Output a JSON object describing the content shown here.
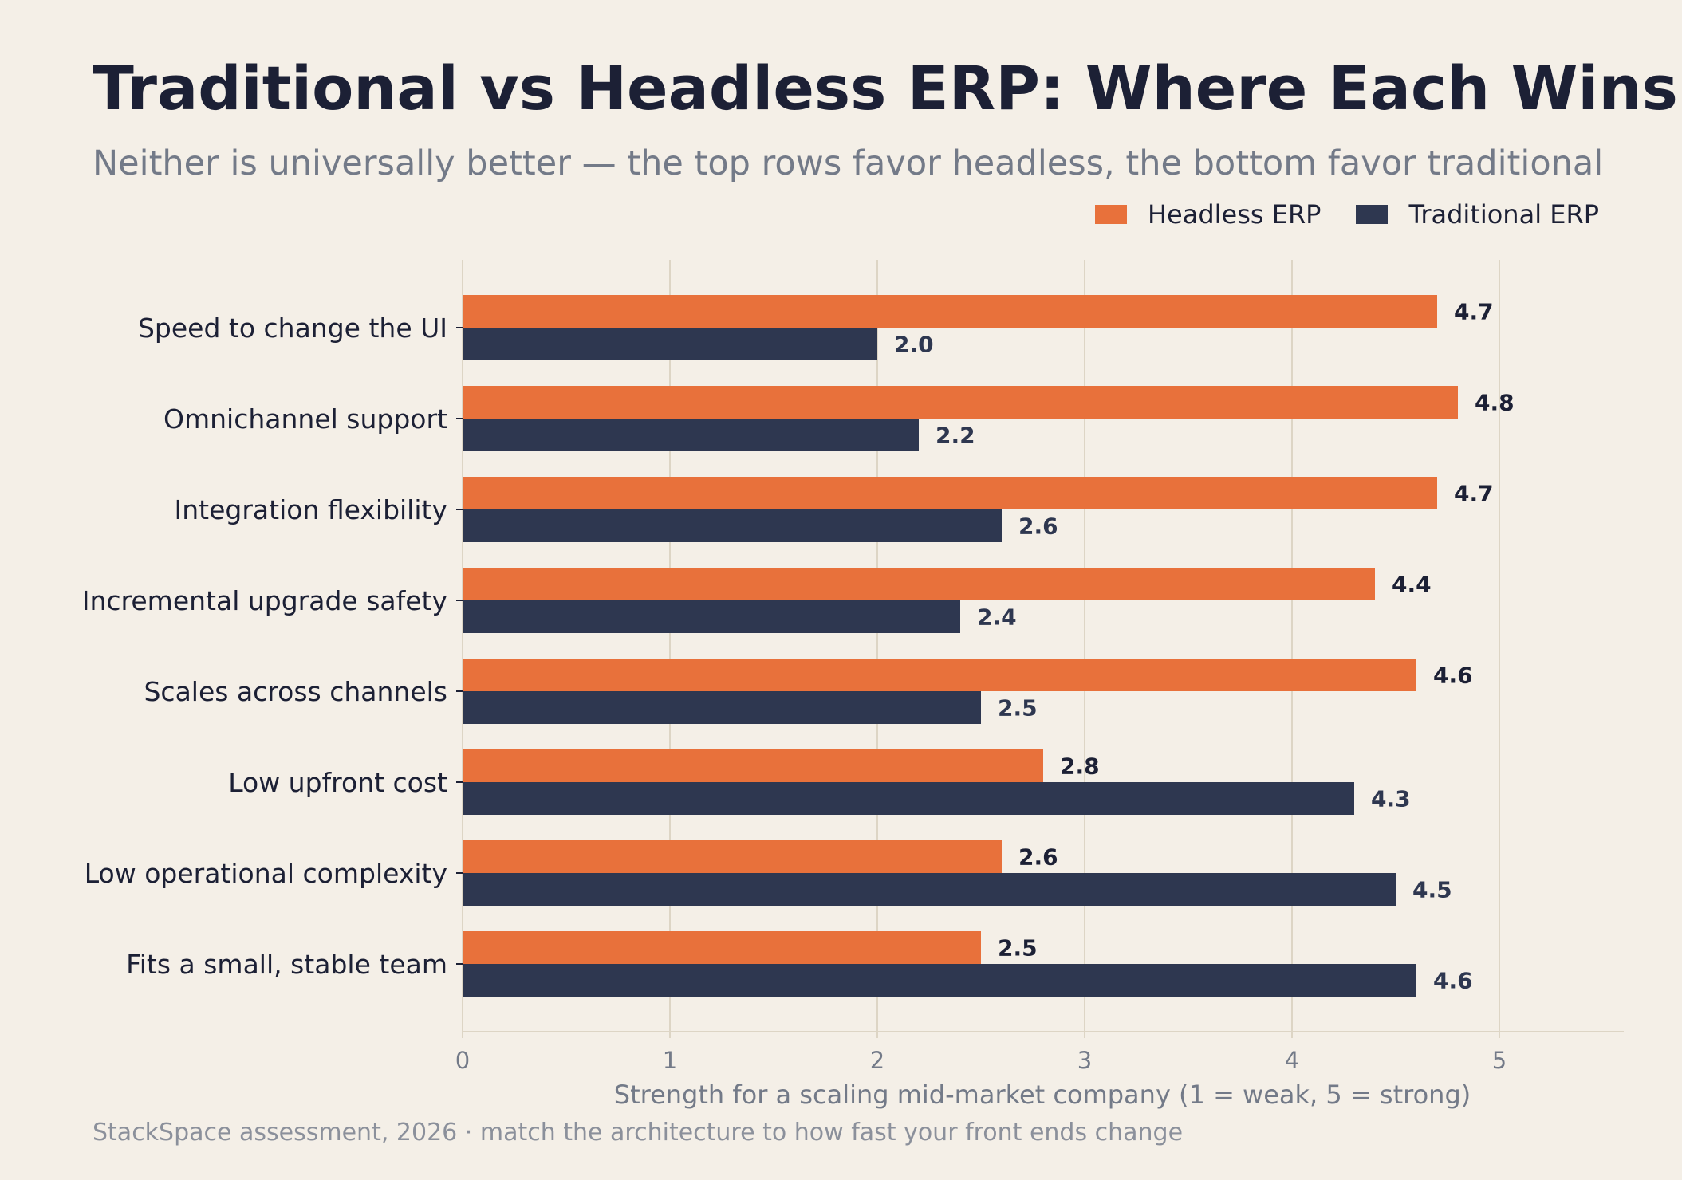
{
  "title": "Traditional vs Headless ERP: Where Each Wins",
  "subtitle": "Neither is universally better — the top rows favor headless, the bottom favor traditional",
  "source": "StackSpace assessment, 2026  ·  match the architecture to how fast your front ends change",
  "colors": {
    "headless": "#e8713b",
    "traditional": "#2e3750",
    "background": "#f4efe7",
    "grid": "#ddd5c5",
    "headless_label": "#1c2035",
    "traditional_label": "#2e3750"
  },
  "chart_data": {
    "type": "bar",
    "orientation": "horizontal",
    "categories": [
      "Speed to change the UI",
      "Omnichannel support",
      "Integration flexibility",
      "Incremental upgrade safety",
      "Scales across channels",
      "Low upfront cost",
      "Low operational complexity",
      "Fits a small, stable team"
    ],
    "series": [
      {
        "name": "Headless ERP",
        "values": [
          4.7,
          4.8,
          4.7,
          4.4,
          4.6,
          2.8,
          2.6,
          2.5
        ]
      },
      {
        "name": "Traditional ERP",
        "values": [
          2.0,
          2.2,
          2.6,
          2.4,
          2.5,
          4.3,
          4.5,
          4.6
        ]
      }
    ],
    "value_labels": {
      "Headless ERP": [
        "4.7",
        "4.8",
        "4.7",
        "4.4",
        "4.6",
        "2.8",
        "2.6",
        "2.5"
      ],
      "Traditional ERP": [
        "2.0",
        "2.2",
        "2.6",
        "2.4",
        "2.5",
        "4.3",
        "4.5",
        "4.6"
      ]
    },
    "xlabel": "Strength for a scaling mid-market company  (1 = weak, 5 = strong)",
    "xlim": [
      0,
      5.6
    ],
    "xticks": [
      0,
      1,
      2,
      3,
      4,
      5
    ],
    "xtick_labels": [
      "0",
      "1",
      "2",
      "3",
      "4",
      "5"
    ],
    "grid": "vertical",
    "legend_position": "top-right"
  }
}
